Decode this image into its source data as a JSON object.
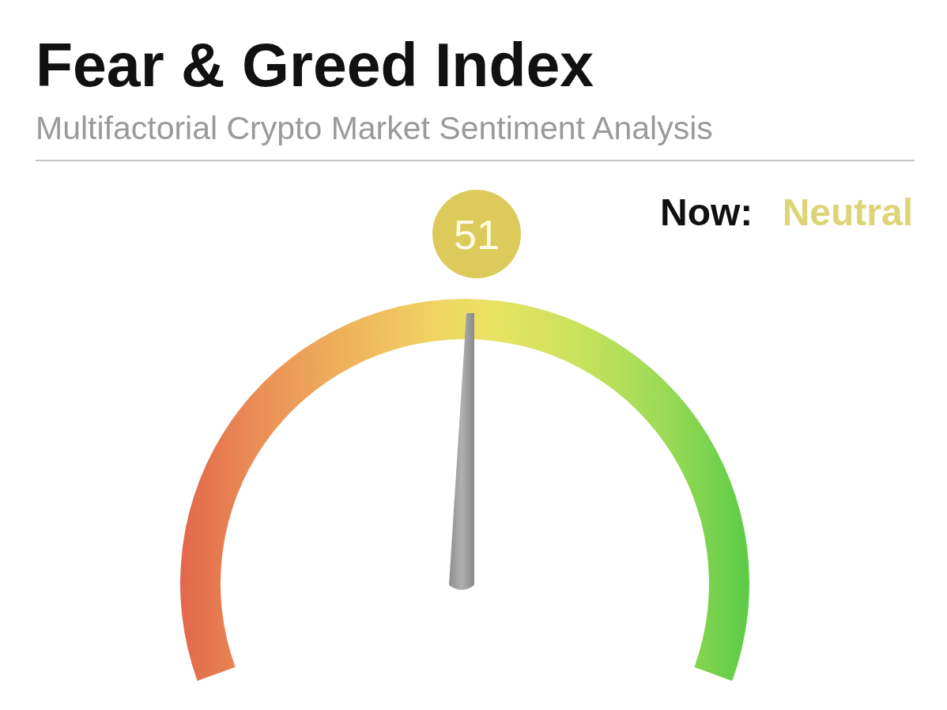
{
  "chart_data": {
    "type": "other",
    "title": "Fear & Greed Index",
    "subtitle": "Multifactorial Crypto Market Sentiment Analysis",
    "values": [
      51
    ],
    "data_labels": true,
    "annotations": [
      "Now:",
      "Neutral"
    ]
  }
}
